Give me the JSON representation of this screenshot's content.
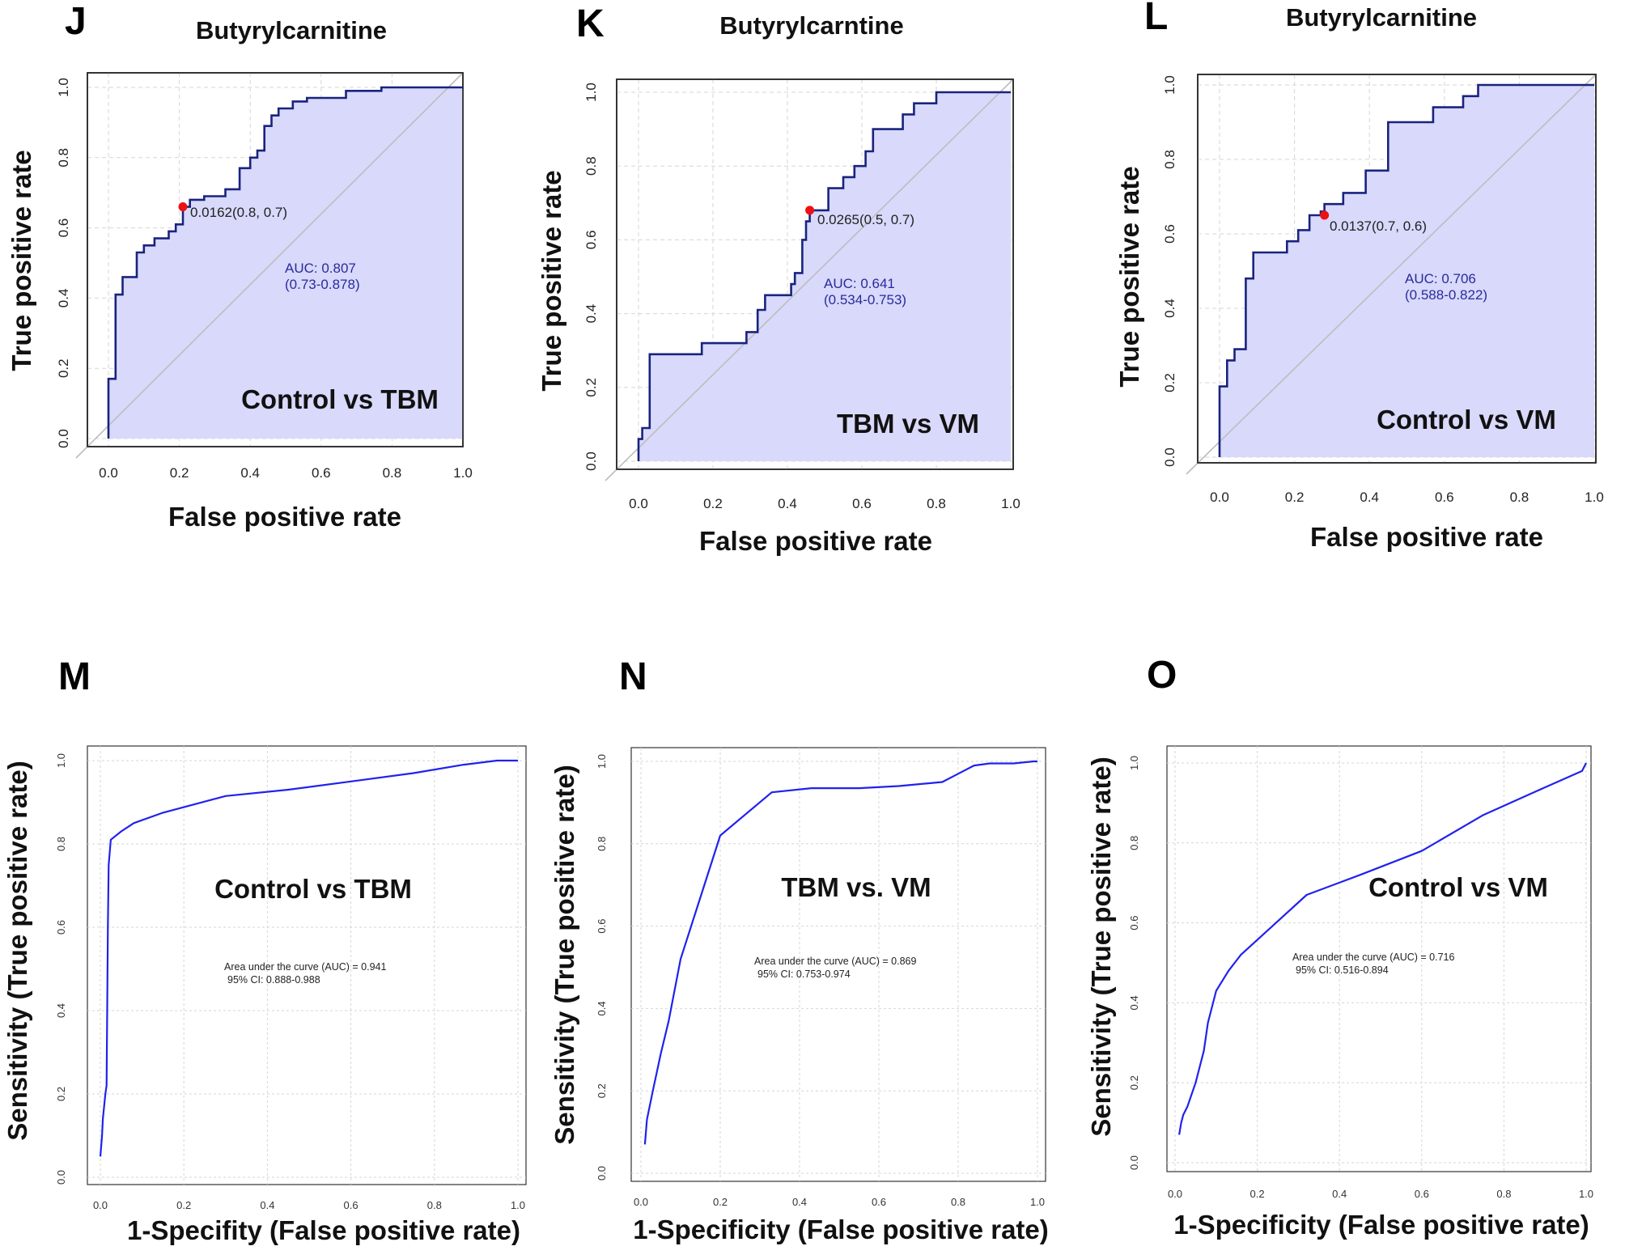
{
  "chart_data": [
    {
      "panel": "J",
      "type": "line",
      "style": "roc_step",
      "title": "Butyrylcarnitine",
      "xlabel": "False positive rate",
      "ylabel": "True positive rate",
      "comparison": "Control vs TBM",
      "auc_text": "AUC: 0.807",
      "ci_text": "(0.73-0.878)",
      "cutoff_text": "0.0162(0.8, 0.7)",
      "cutoff_point": [
        0.21,
        0.66
      ],
      "xlim": [
        0,
        1
      ],
      "ylim": [
        0,
        1
      ],
      "xticks": [
        "0.0",
        "0.2",
        "0.4",
        "0.6",
        "0.8",
        "1.0"
      ],
      "yticks": [
        "0.0",
        "0.2",
        "0.4",
        "0.6",
        "0.8",
        "1.0"
      ],
      "x": [
        0,
        0,
        0.02,
        0.02,
        0.04,
        0.04,
        0.08,
        0.08,
        0.1,
        0.1,
        0.13,
        0.13,
        0.17,
        0.17,
        0.19,
        0.19,
        0.21,
        0.21,
        0.23,
        0.23,
        0.27,
        0.27,
        0.33,
        0.33,
        0.37,
        0.37,
        0.4,
        0.4,
        0.42,
        0.42,
        0.44,
        0.44,
        0.46,
        0.46,
        0.48,
        0.48,
        0.52,
        0.52,
        0.56,
        0.56,
        0.67,
        0.67,
        0.77,
        0.77,
        1
      ],
      "y": [
        0,
        0.17,
        0.17,
        0.41,
        0.41,
        0.46,
        0.46,
        0.53,
        0.53,
        0.55,
        0.55,
        0.57,
        0.57,
        0.59,
        0.59,
        0.61,
        0.61,
        0.66,
        0.66,
        0.68,
        0.68,
        0.69,
        0.69,
        0.71,
        0.71,
        0.77,
        0.77,
        0.8,
        0.8,
        0.82,
        0.82,
        0.89,
        0.89,
        0.92,
        0.92,
        0.94,
        0.94,
        0.96,
        0.96,
        0.97,
        0.97,
        0.99,
        0.99,
        1,
        1
      ]
    },
    {
      "panel": "K",
      "type": "line",
      "style": "roc_step",
      "title": "Butyrylcarntine",
      "xlabel": "False positive rate",
      "ylabel": "True positive rate",
      "comparison": "TBM vs VM",
      "auc_text": "AUC: 0.641",
      "ci_text": "(0.534-0.753)",
      "cutoff_text": "0.0265(0.5, 0.7)",
      "cutoff_point": [
        0.46,
        0.68
      ],
      "xlim": [
        0,
        1
      ],
      "ylim": [
        0,
        1
      ],
      "xticks": [
        "0.0",
        "0.2",
        "0.4",
        "0.6",
        "0.8",
        "1.0"
      ],
      "yticks": [
        "0.0",
        "0.2",
        "0.4",
        "0.6",
        "0.8",
        "1.0"
      ],
      "x": [
        0,
        0,
        0.01,
        0.01,
        0.03,
        0.03,
        0.17,
        0.17,
        0.29,
        0.29,
        0.32,
        0.32,
        0.34,
        0.34,
        0.41,
        0.41,
        0.42,
        0.42,
        0.44,
        0.44,
        0.45,
        0.45,
        0.46,
        0.46,
        0.51,
        0.51,
        0.55,
        0.55,
        0.58,
        0.58,
        0.61,
        0.61,
        0.63,
        0.63,
        0.71,
        0.71,
        0.74,
        0.74,
        0.8,
        0.8,
        1
      ],
      "y": [
        0,
        0.06,
        0.06,
        0.09,
        0.09,
        0.29,
        0.29,
        0.32,
        0.32,
        0.35,
        0.35,
        0.41,
        0.41,
        0.45,
        0.45,
        0.48,
        0.48,
        0.51,
        0.51,
        0.6,
        0.6,
        0.65,
        0.65,
        0.68,
        0.68,
        0.74,
        0.74,
        0.77,
        0.77,
        0.8,
        0.8,
        0.84,
        0.84,
        0.9,
        0.9,
        0.94,
        0.94,
        0.97,
        0.97,
        1,
        1
      ]
    },
    {
      "panel": "L",
      "type": "line",
      "style": "roc_step",
      "title": "Butyrylcarnitine",
      "xlabel": "False positive rate",
      "ylabel": "True positive rate",
      "comparison": "Control vs VM",
      "auc_text": "AUC: 0.706",
      "ci_text": "(0.588-0.822)",
      "cutoff_text": "0.0137(0.7, 0.6)",
      "cutoff_point": [
        0.28,
        0.65
      ],
      "xlim": [
        0,
        1
      ],
      "ylim": [
        0,
        1
      ],
      "xticks": [
        "0.0",
        "0.2",
        "0.4",
        "0.6",
        "0.8",
        "1.0"
      ],
      "yticks": [
        "0.0",
        "0.2",
        "0.4",
        "0.6",
        "0.8",
        "1.0"
      ],
      "x": [
        0,
        0,
        0.02,
        0.02,
        0.04,
        0.04,
        0.07,
        0.07,
        0.09,
        0.09,
        0.18,
        0.18,
        0.21,
        0.21,
        0.24,
        0.24,
        0.27,
        0.27,
        0.28,
        0.28,
        0.33,
        0.33,
        0.39,
        0.39,
        0.45,
        0.45,
        0.57,
        0.57,
        0.65,
        0.65,
        0.69,
        0.69,
        0.89,
        0.89,
        0.98,
        0.98,
        1
      ],
      "y": [
        0,
        0.19,
        0.19,
        0.26,
        0.26,
        0.29,
        0.29,
        0.48,
        0.48,
        0.55,
        0.55,
        0.58,
        0.58,
        0.61,
        0.61,
        0.65,
        0.65,
        0.66,
        0.66,
        0.68,
        0.68,
        0.71,
        0.71,
        0.77,
        0.77,
        0.9,
        0.9,
        0.94,
        0.94,
        0.97,
        0.97,
        1,
        1,
        1,
        1,
        1,
        1
      ]
    },
    {
      "panel": "M",
      "type": "line",
      "style": "roc_smooth",
      "title": "",
      "xlabel": "1-Specifity (False positive rate)",
      "ylabel": "Sensitivity (True positive rate)",
      "comparison": "Control vs TBM",
      "auc_text": "Area under the curve (AUC) = 0.941",
      "ci_text": "95% CI: 0.888-0.988",
      "xlim": [
        0,
        1
      ],
      "ylim": [
        0,
        1
      ],
      "xticks": [
        "0.0",
        "0.2",
        "0.4",
        "0.6",
        "0.8",
        "1.0"
      ],
      "yticks": [
        "0.0",
        "0.2",
        "0.4",
        "0.6",
        "0.8",
        "1.0"
      ],
      "x": [
        0.0,
        0.004,
        0.006,
        0.012,
        0.015,
        0.018,
        0.02,
        0.025,
        0.05,
        0.08,
        0.15,
        0.3,
        0.45,
        0.6,
        0.75,
        0.87,
        0.95,
        1.0
      ],
      "y": [
        0.05,
        0.1,
        0.14,
        0.2,
        0.22,
        0.6,
        0.75,
        0.81,
        0.83,
        0.85,
        0.875,
        0.915,
        0.93,
        0.95,
        0.97,
        0.99,
        1.0,
        1.0
      ]
    },
    {
      "panel": "N",
      "type": "line",
      "style": "roc_smooth",
      "title": "",
      "xlabel": "1-Specificity (False positive rate)",
      "ylabel": "Sensitivity (True positive rate)",
      "comparison": "TBM vs. VM",
      "auc_text": "Area under the curve (AUC) = 0.869",
      "ci_text": "95% CI: 0.753-0.974",
      "xlim": [
        0,
        1
      ],
      "ylim": [
        0,
        1
      ],
      "xticks": [
        "0.0",
        "0.2",
        "0.4",
        "0.6",
        "0.8",
        "1.0"
      ],
      "yticks": [
        "0.0",
        "0.2",
        "0.4",
        "0.6",
        "0.8",
        "1.0"
      ],
      "x": [
        0.01,
        0.015,
        0.03,
        0.05,
        0.07,
        0.1,
        0.13,
        0.2,
        0.33,
        0.43,
        0.55,
        0.65,
        0.76,
        0.8,
        0.84,
        0.88,
        0.94,
        0.99,
        1.0
      ],
      "y": [
        0.07,
        0.13,
        0.2,
        0.29,
        0.37,
        0.52,
        0.61,
        0.82,
        0.925,
        0.935,
        0.935,
        0.94,
        0.95,
        0.97,
        0.99,
        0.995,
        0.995,
        1.0,
        1.0
      ]
    },
    {
      "panel": "O",
      "type": "line",
      "style": "roc_smooth",
      "title": "",
      "xlabel": "1-Specificity (False positive rate)",
      "ylabel": "Sensitivity (True positive rate)",
      "comparison": "Control vs VM",
      "auc_text": "Area under the curve (AUC) = 0.716",
      "ci_text": "95% CI: 0.516-0.894",
      "xlim": [
        0,
        1
      ],
      "ylim": [
        0,
        1
      ],
      "xticks": [
        "0.0",
        "0.2",
        "0.4",
        "0.6",
        "0.8",
        "1.0"
      ],
      "yticks": [
        "0.0",
        "0.2",
        "0.4",
        "0.6",
        "0.8",
        "1.0"
      ],
      "x": [
        0.01,
        0.015,
        0.02,
        0.03,
        0.04,
        0.05,
        0.06,
        0.07,
        0.08,
        0.1,
        0.13,
        0.16,
        0.32,
        0.45,
        0.6,
        0.75,
        0.88,
        0.99,
        1.0
      ],
      "y": [
        0.07,
        0.1,
        0.12,
        0.14,
        0.17,
        0.2,
        0.24,
        0.28,
        0.35,
        0.43,
        0.48,
        0.52,
        0.67,
        0.72,
        0.78,
        0.87,
        0.93,
        0.98,
        1.0
      ]
    }
  ],
  "panel_labels": [
    "J",
    "K",
    "L",
    "M",
    "N",
    "O"
  ],
  "colors": {
    "step_line": "#1a237e",
    "step_fill": "#d8d9fb",
    "smooth_line": "#2121ee",
    "cutoff_point": "#ee1111",
    "diagonal": "#bdbdbd",
    "grid": "#d6d6d6",
    "auc_text": "#2a2a9c"
  }
}
